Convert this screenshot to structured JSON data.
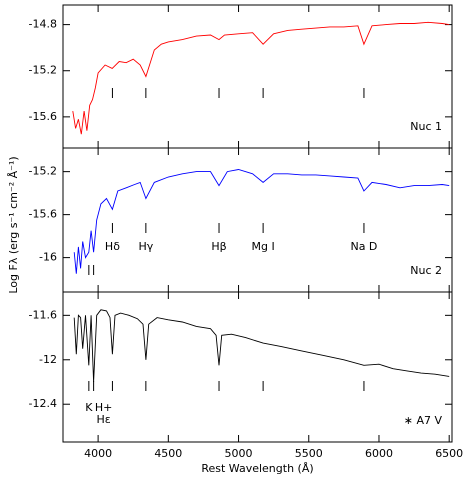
{
  "chart_data": [
    {
      "type": "line",
      "label": "Nuc 1",
      "label_color": "#ff0000",
      "x": [
        3820,
        3840,
        3860,
        3880,
        3900,
        3920,
        3940,
        3960,
        3980,
        4000,
        4050,
        4100,
        4150,
        4200,
        4250,
        4300,
        4340,
        4400,
        4450,
        4500,
        4600,
        4700,
        4800,
        4861,
        4900,
        5000,
        5100,
        5175,
        5250,
        5350,
        5450,
        5550,
        5650,
        5750,
        5850,
        5893,
        5950,
        6050,
        6150,
        6250,
        6350,
        6450,
        6500
      ],
      "series": [
        {
          "color": "#ff0000",
          "values": [
            -15.55,
            -15.7,
            -15.62,
            -15.75,
            -15.55,
            -15.72,
            -15.5,
            -15.45,
            -15.35,
            -15.22,
            -15.15,
            -15.18,
            -15.12,
            -15.13,
            -15.1,
            -15.15,
            -15.25,
            -15.02,
            -14.97,
            -14.95,
            -14.93,
            -14.9,
            -14.89,
            -14.93,
            -14.89,
            -14.88,
            -14.87,
            -14.97,
            -14.88,
            -14.85,
            -14.84,
            -14.83,
            -14.82,
            -14.82,
            -14.81,
            -14.97,
            -14.81,
            -14.8,
            -14.79,
            -14.79,
            -14.78,
            -14.79,
            -14.8
          ]
        }
      ],
      "xlim": [
        3750,
        6520
      ],
      "xticks": [
        4000,
        4500,
        5000,
        5500,
        6000,
        6500
      ],
      "ylim": [
        -15.87,
        -14.63
      ],
      "yticks": [
        -14.8,
        -15.2,
        -15.6
      ],
      "markers": [
        {
          "x": 4102
        },
        {
          "x": 4340
        },
        {
          "x": 4861
        },
        {
          "x": 5175
        },
        {
          "x": 5893
        }
      ]
    },
    {
      "type": "line",
      "label": "Nuc 2",
      "label_color": "#0000ff",
      "y_label": "Log Fλ (erg s⁻¹ cm⁻² Å⁻¹)",
      "x": [
        3830,
        3845,
        3860,
        3875,
        3890,
        3910,
        3934,
        3950,
        3968,
        3990,
        4020,
        4060,
        4102,
        4140,
        4200,
        4260,
        4300,
        4340,
        4400,
        4500,
        4600,
        4700,
        4800,
        4861,
        4920,
        5000,
        5100,
        5175,
        5250,
        5350,
        5450,
        5550,
        5650,
        5750,
        5850,
        5893,
        5950,
        6050,
        6150,
        6250,
        6350,
        6450,
        6500
      ],
      "series": [
        {
          "color": "#0000ff",
          "values": [
            -15.95,
            -16.15,
            -15.9,
            -16.1,
            -15.85,
            -16.0,
            -15.95,
            -15.75,
            -15.95,
            -15.65,
            -15.5,
            -15.45,
            -15.55,
            -15.38,
            -15.35,
            -15.32,
            -15.3,
            -15.45,
            -15.3,
            -15.25,
            -15.22,
            -15.2,
            -15.2,
            -15.33,
            -15.2,
            -15.18,
            -15.22,
            -15.3,
            -15.22,
            -15.22,
            -15.23,
            -15.23,
            -15.24,
            -15.25,
            -15.26,
            -15.38,
            -15.3,
            -15.32,
            -15.35,
            -15.33,
            -15.33,
            -15.32,
            -15.33
          ]
        }
      ],
      "xlim": [
        3750,
        6520
      ],
      "xticks": [
        4000,
        4500,
        5000,
        5500,
        6000,
        6500
      ],
      "ylim": [
        -16.32,
        -14.98
      ],
      "yticks": [
        -15.2,
        -15.6,
        -16
      ],
      "markers": [
        {
          "x": 3934
        },
        {
          "x": 3968
        },
        {
          "x": 4102,
          "label": "Hδ"
        },
        {
          "x": 4340,
          "label": "Hγ"
        },
        {
          "x": 4861,
          "label": "Hβ"
        },
        {
          "x": 5175,
          "label": "Mg I"
        },
        {
          "x": 5893,
          "label": "Na D"
        }
      ]
    },
    {
      "type": "line",
      "label": "∗ A7 V",
      "label_color": "#000000",
      "x_label": "Rest Wavelength (Å)",
      "x": [
        3830,
        3845,
        3860,
        3875,
        3890,
        3910,
        3934,
        3950,
        3968,
        3990,
        4020,
        4060,
        4085,
        4102,
        4120,
        4160,
        4220,
        4280,
        4320,
        4340,
        4360,
        4420,
        4500,
        4600,
        4700,
        4800,
        4840,
        4861,
        4880,
        4950,
        5050,
        5175,
        5300,
        5450,
        5600,
        5750,
        5893,
        6000,
        6100,
        6200,
        6300,
        6400,
        6500
      ],
      "series": [
        {
          "color": "#000000",
          "values": [
            -11.62,
            -11.95,
            -11.6,
            -11.62,
            -11.9,
            -11.6,
            -12.05,
            -11.6,
            -12.2,
            -11.6,
            -11.55,
            -11.56,
            -11.62,
            -11.95,
            -11.6,
            -11.58,
            -11.6,
            -11.63,
            -11.68,
            -12.0,
            -11.68,
            -11.62,
            -11.64,
            -11.66,
            -11.7,
            -11.72,
            -11.78,
            -12.05,
            -11.78,
            -11.77,
            -11.8,
            -11.85,
            -11.88,
            -11.92,
            -11.96,
            -12.0,
            -12.05,
            -12.04,
            -12.08,
            -12.1,
            -12.12,
            -12.13,
            -12.15
          ]
        }
      ],
      "xlim": [
        3750,
        6520
      ],
      "xticks": [
        4000,
        4500,
        5000,
        5500,
        6000,
        6500
      ],
      "ylim": [
        -12.74,
        -11.39
      ],
      "yticks": [
        -11.6,
        -12,
        -12.4
      ],
      "markers": [
        {
          "x": 3934,
          "label": "K"
        },
        {
          "x": 3968,
          "label": "H+",
          "label2": "Hε"
        },
        {
          "x": 4102
        },
        {
          "x": 4340
        },
        {
          "x": 4861
        },
        {
          "x": 5175
        },
        {
          "x": 5893
        }
      ]
    }
  ]
}
